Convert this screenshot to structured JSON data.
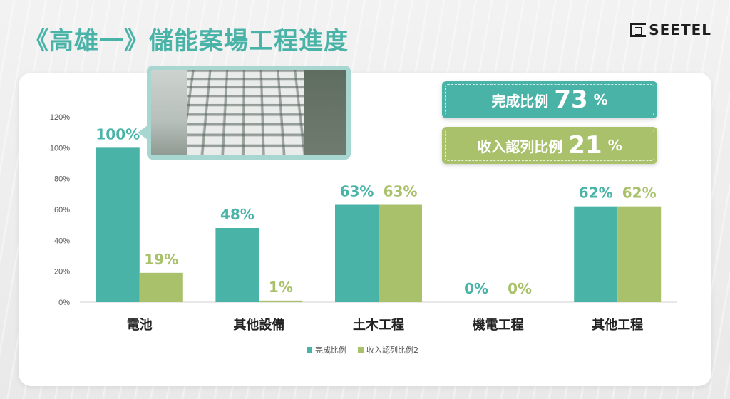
{
  "header": {
    "title": "《高雄一》儲能案場工程進度",
    "logo_text": "SEETEL"
  },
  "badges": {
    "complete": {
      "label": "完成比例",
      "value": "73",
      "unit": "%"
    },
    "revenue": {
      "label": "收入認列比例",
      "value": "21",
      "unit": "%"
    }
  },
  "colors": {
    "series_complete": "#4ab3a8",
    "series_revenue": "#a9c16a",
    "title": "#4ab3a8"
  },
  "photo": {
    "icon": "site-photo-icon"
  },
  "chart_data": {
    "type": "bar",
    "categories": [
      "電池",
      "其他設備",
      "土木工程",
      "機電工程",
      "其他工程"
    ],
    "series": [
      {
        "name": "完成比例",
        "values": [
          100,
          48,
          63,
          0,
          62
        ],
        "labels": [
          "100%",
          "48%",
          "63%",
          "0%",
          "62%"
        ]
      },
      {
        "name": "收入認列比例2",
        "values": [
          19,
          1,
          63,
          0,
          62
        ],
        "labels": [
          "19%",
          "1%",
          "63%",
          "0%",
          "62%"
        ]
      }
    ],
    "yticks": [
      "0%",
      "20%",
      "40%",
      "60%",
      "80%",
      "100%",
      "120%"
    ],
    "ylim": [
      0,
      120
    ],
    "legend": "bottom",
    "grid": false
  }
}
